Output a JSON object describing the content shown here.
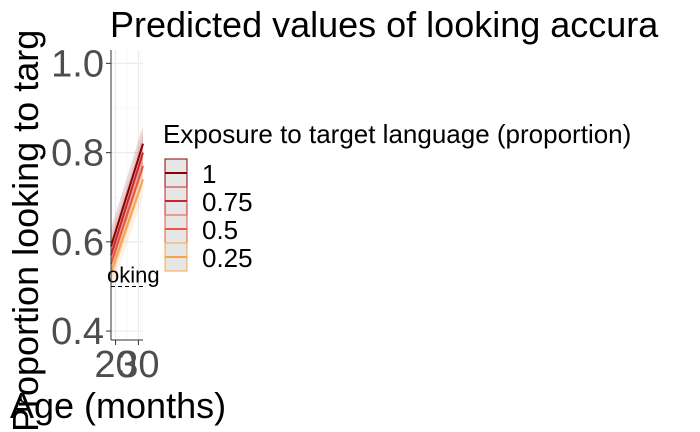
{
  "chart_data": {
    "type": "line",
    "title": "Predicted values of looking accura",
    "xlabel": "Age (months)",
    "ylabel": "Proportion looking to targ",
    "x_ticks": [
      "20",
      "30"
    ],
    "y_ticks": [
      "0.4",
      "0.6",
      "0.8",
      "1.0"
    ],
    "xlim": [
      18,
      32
    ],
    "ylim": [
      0.38,
      1.03
    ],
    "grid": true,
    "legend": {
      "title": "Exposure to target language (proportion)",
      "position": "right",
      "entries": [
        "1",
        "0.75",
        "0.5",
        "0.25"
      ]
    },
    "annotation": {
      "text": "oking",
      "y": 0.5
    },
    "series": [
      {
        "name": "1",
        "color": "#8b0000",
        "x": [
          18,
          32
        ],
        "y": [
          0.59,
          0.82
        ],
        "ci_lower": [
          0.55,
          0.77
        ],
        "ci_upper": [
          0.63,
          0.86
        ]
      },
      {
        "name": "0.75",
        "color": "#c62828",
        "x": [
          18,
          32
        ],
        "y": [
          0.57,
          0.8
        ],
        "ci_lower": [
          0.53,
          0.76
        ],
        "ci_upper": [
          0.61,
          0.84
        ]
      },
      {
        "name": "0.5",
        "color": "#e8583f",
        "x": [
          18,
          32
        ],
        "y": [
          0.55,
          0.77
        ],
        "ci_lower": [
          0.51,
          0.73
        ],
        "ci_upper": [
          0.59,
          0.81
        ]
      },
      {
        "name": "0.25",
        "color": "#f5a64a",
        "x": [
          18,
          32
        ],
        "y": [
          0.53,
          0.74
        ],
        "ci_lower": [
          0.49,
          0.7
        ],
        "ci_upper": [
          0.57,
          0.78
        ]
      }
    ]
  }
}
